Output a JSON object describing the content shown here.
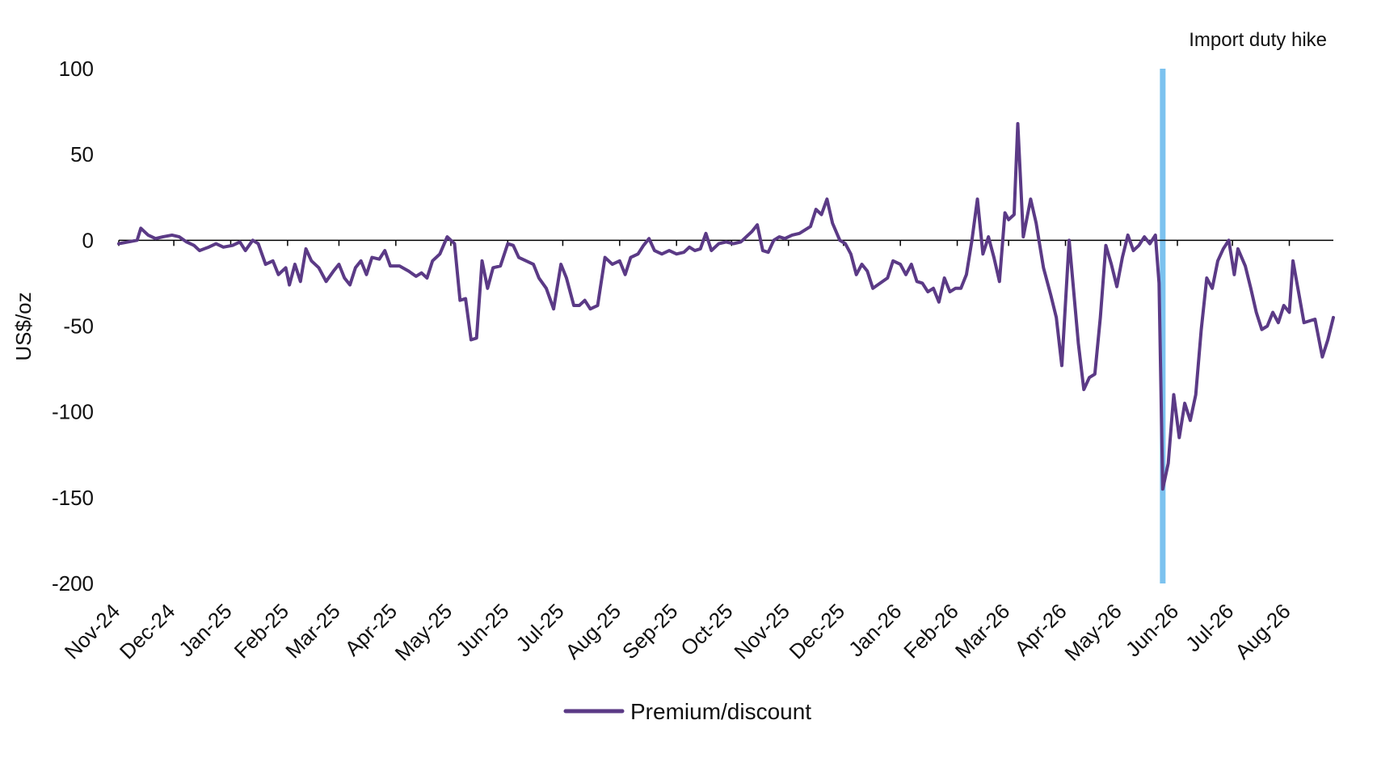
{
  "chart_data": {
    "type": "line",
    "title": "",
    "xlabel": "",
    "ylabel": "US$/oz",
    "ylim": [
      -200,
      100
    ],
    "yticks": [
      100,
      50,
      0,
      -50,
      -100,
      -150,
      -200
    ],
    "xlim": [
      "2024-11-01",
      "2026-08-25"
    ],
    "x_ticks": [
      "2024-11-01",
      "2024-12-01",
      "2025-01-01",
      "2025-02-01",
      "2025-03-01",
      "2025-04-01",
      "2025-05-01",
      "2025-06-01",
      "2025-07-01",
      "2025-08-01",
      "2025-09-01",
      "2025-10-01",
      "2025-11-01",
      "2025-12-01",
      "2026-01-01",
      "2026-02-01",
      "2026-03-01",
      "2026-04-01",
      "2026-05-01",
      "2026-06-01",
      "2026-07-01",
      "2026-08-01"
    ],
    "x_tick_labels": [
      "Nov-24",
      "Dec-24",
      "Jan-25",
      "Feb-25",
      "Mar-25",
      "Apr-25",
      "May-25",
      "Jun-25",
      "Jul-25",
      "Aug-25",
      "Sep-25",
      "Oct-25",
      "Nov-25",
      "Dec-25",
      "Jan-26",
      "Feb-26",
      "Mar-26",
      "Apr-26",
      "May-26",
      "Jun-26",
      "Jul-26",
      "Aug-26"
    ],
    "grid": false,
    "legend_position": "bottom-center",
    "colors": {
      "series": "#5b3a86",
      "annotation": "#7cc2ef",
      "zero_line": "#000000",
      "text": "#111111"
    },
    "annotations": [
      {
        "type": "vertical_line",
        "x": "2026-05-24",
        "label": "Import duty hike"
      }
    ],
    "series": [
      {
        "name": "Premium/discount",
        "points": [
          {
            "x": "2024-11-01",
            "y": -2
          },
          {
            "x": "2024-11-06",
            "y": -1
          },
          {
            "x": "2024-11-11",
            "y": 0
          },
          {
            "x": "2024-11-13",
            "y": 7
          },
          {
            "x": "2024-11-17",
            "y": 3
          },
          {
            "x": "2024-11-21",
            "y": 1
          },
          {
            "x": "2024-11-25",
            "y": 2
          },
          {
            "x": "2024-11-30",
            "y": 3
          },
          {
            "x": "2024-12-04",
            "y": 2
          },
          {
            "x": "2024-12-08",
            "y": -1
          },
          {
            "x": "2024-12-12",
            "y": -3
          },
          {
            "x": "2024-12-15",
            "y": -6
          },
          {
            "x": "2024-12-20",
            "y": -4
          },
          {
            "x": "2024-12-24",
            "y": -2
          },
          {
            "x": "2024-12-28",
            "y": -4
          },
          {
            "x": "2025-01-02",
            "y": -3
          },
          {
            "x": "2025-01-06",
            "y": -1
          },
          {
            "x": "2025-01-09",
            "y": -6
          },
          {
            "x": "2025-01-13",
            "y": 0
          },
          {
            "x": "2025-01-16",
            "y": -2
          },
          {
            "x": "2025-01-20",
            "y": -14
          },
          {
            "x": "2025-01-24",
            "y": -12
          },
          {
            "x": "2025-01-27",
            "y": -20
          },
          {
            "x": "2025-01-31",
            "y": -16
          },
          {
            "x": "2025-02-02",
            "y": -26
          },
          {
            "x": "2025-02-05",
            "y": -14
          },
          {
            "x": "2025-02-08",
            "y": -24
          },
          {
            "x": "2025-02-11",
            "y": -5
          },
          {
            "x": "2025-02-14",
            "y": -12
          },
          {
            "x": "2025-02-18",
            "y": -16
          },
          {
            "x": "2025-02-22",
            "y": -24
          },
          {
            "x": "2025-02-26",
            "y": -18
          },
          {
            "x": "2025-03-01",
            "y": -14
          },
          {
            "x": "2025-03-04",
            "y": -22
          },
          {
            "x": "2025-03-07",
            "y": -26
          },
          {
            "x": "2025-03-10",
            "y": -16
          },
          {
            "x": "2025-03-13",
            "y": -12
          },
          {
            "x": "2025-03-16",
            "y": -20
          },
          {
            "x": "2025-03-19",
            "y": -10
          },
          {
            "x": "2025-03-23",
            "y": -11
          },
          {
            "x": "2025-03-26",
            "y": -6
          },
          {
            "x": "2025-03-29",
            "y": -15
          },
          {
            "x": "2025-04-03",
            "y": -15
          },
          {
            "x": "2025-04-08",
            "y": -18
          },
          {
            "x": "2025-04-12",
            "y": -21
          },
          {
            "x": "2025-04-15",
            "y": -19
          },
          {
            "x": "2025-04-18",
            "y": -22
          },
          {
            "x": "2025-04-21",
            "y": -12
          },
          {
            "x": "2025-04-25",
            "y": -8
          },
          {
            "x": "2025-04-29",
            "y": 2
          },
          {
            "x": "2025-05-03",
            "y": -2
          },
          {
            "x": "2025-05-06",
            "y": -35
          },
          {
            "x": "2025-05-09",
            "y": -34
          },
          {
            "x": "2025-05-12",
            "y": -58
          },
          {
            "x": "2025-05-15",
            "y": -57
          },
          {
            "x": "2025-05-18",
            "y": -12
          },
          {
            "x": "2025-05-21",
            "y": -28
          },
          {
            "x": "2025-05-24",
            "y": -16
          },
          {
            "x": "2025-05-28",
            "y": -15
          },
          {
            "x": "2025-06-01",
            "y": -2
          },
          {
            "x": "2025-06-04",
            "y": -3
          },
          {
            "x": "2025-06-07",
            "y": -10
          },
          {
            "x": "2025-06-11",
            "y": -12
          },
          {
            "x": "2025-06-15",
            "y": -14
          },
          {
            "x": "2025-06-18",
            "y": -22
          },
          {
            "x": "2025-06-22",
            "y": -28
          },
          {
            "x": "2025-06-26",
            "y": -40
          },
          {
            "x": "2025-06-30",
            "y": -14
          },
          {
            "x": "2025-07-03",
            "y": -22
          },
          {
            "x": "2025-07-07",
            "y": -38
          },
          {
            "x": "2025-07-10",
            "y": -38
          },
          {
            "x": "2025-07-13",
            "y": -35
          },
          {
            "x": "2025-07-16",
            "y": -40
          },
          {
            "x": "2025-07-20",
            "y": -38
          },
          {
            "x": "2025-07-24",
            "y": -10
          },
          {
            "x": "2025-07-28",
            "y": -14
          },
          {
            "x": "2025-08-01",
            "y": -12
          },
          {
            "x": "2025-08-04",
            "y": -20
          },
          {
            "x": "2025-08-07",
            "y": -10
          },
          {
            "x": "2025-08-11",
            "y": -8
          },
          {
            "x": "2025-08-14",
            "y": -3
          },
          {
            "x": "2025-08-17",
            "y": 1
          },
          {
            "x": "2025-08-20",
            "y": -6
          },
          {
            "x": "2025-08-24",
            "y": -8
          },
          {
            "x": "2025-08-28",
            "y": -6
          },
          {
            "x": "2025-09-01",
            "y": -8
          },
          {
            "x": "2025-09-05",
            "y": -7
          },
          {
            "x": "2025-09-08",
            "y": -4
          },
          {
            "x": "2025-09-11",
            "y": -6
          },
          {
            "x": "2025-09-14",
            "y": -5
          },
          {
            "x": "2025-09-17",
            "y": 4
          },
          {
            "x": "2025-09-20",
            "y": -6
          },
          {
            "x": "2025-09-24",
            "y": -2
          },
          {
            "x": "2025-09-28",
            "y": -1
          },
          {
            "x": "2025-10-02",
            "y": -2
          },
          {
            "x": "2025-10-06",
            "y": -1
          },
          {
            "x": "2025-10-09",
            "y": 2
          },
          {
            "x": "2025-10-12",
            "y": 5
          },
          {
            "x": "2025-10-15",
            "y": 9
          },
          {
            "x": "2025-10-18",
            "y": -6
          },
          {
            "x": "2025-10-21",
            "y": -7
          },
          {
            "x": "2025-10-24",
            "y": 0
          },
          {
            "x": "2025-10-27",
            "y": 2
          },
          {
            "x": "2025-10-30",
            "y": 1
          },
          {
            "x": "2025-11-03",
            "y": 3
          },
          {
            "x": "2025-11-07",
            "y": 4
          },
          {
            "x": "2025-11-10",
            "y": 6
          },
          {
            "x": "2025-11-13",
            "y": 8
          },
          {
            "x": "2025-11-16",
            "y": 18
          },
          {
            "x": "2025-11-19",
            "y": 15
          },
          {
            "x": "2025-11-22",
            "y": 24
          },
          {
            "x": "2025-11-25",
            "y": 10
          },
          {
            "x": "2025-11-29",
            "y": 0
          },
          {
            "x": "2025-12-02",
            "y": -2
          },
          {
            "x": "2025-12-05",
            "y": -8
          },
          {
            "x": "2025-12-08",
            "y": -20
          },
          {
            "x": "2025-12-11",
            "y": -14
          },
          {
            "x": "2025-12-14",
            "y": -18
          },
          {
            "x": "2025-12-17",
            "y": -28
          },
          {
            "x": "2025-12-21",
            "y": -25
          },
          {
            "x": "2025-12-25",
            "y": -22
          },
          {
            "x": "2025-12-28",
            "y": -12
          },
          {
            "x": "2026-01-01",
            "y": -14
          },
          {
            "x": "2026-01-04",
            "y": -20
          },
          {
            "x": "2026-01-07",
            "y": -14
          },
          {
            "x": "2026-01-10",
            "y": -24
          },
          {
            "x": "2026-01-13",
            "y": -25
          },
          {
            "x": "2026-01-16",
            "y": -30
          },
          {
            "x": "2026-01-19",
            "y": -28
          },
          {
            "x": "2026-01-22",
            "y": -36
          },
          {
            "x": "2026-01-25",
            "y": -22
          },
          {
            "x": "2026-01-28",
            "y": -30
          },
          {
            "x": "2026-01-31",
            "y": -28
          },
          {
            "x": "2026-02-03",
            "y": -28
          },
          {
            "x": "2026-02-06",
            "y": -20
          },
          {
            "x": "2026-02-09",
            "y": 0
          },
          {
            "x": "2026-02-12",
            "y": 24
          },
          {
            "x": "2026-02-15",
            "y": -8
          },
          {
            "x": "2026-02-18",
            "y": 2
          },
          {
            "x": "2026-02-21",
            "y": -10
          },
          {
            "x": "2026-02-24",
            "y": -24
          },
          {
            "x": "2026-02-27",
            "y": 16
          },
          {
            "x": "2026-03-01",
            "y": 12
          },
          {
            "x": "2026-03-04",
            "y": 15
          },
          {
            "x": "2026-03-06",
            "y": 68
          },
          {
            "x": "2026-03-09",
            "y": 2
          },
          {
            "x": "2026-03-13",
            "y": 24
          },
          {
            "x": "2026-03-16",
            "y": 10
          },
          {
            "x": "2026-03-20",
            "y": -16
          },
          {
            "x": "2026-03-24",
            "y": -32
          },
          {
            "x": "2026-03-27",
            "y": -45
          },
          {
            "x": "2026-03-30",
            "y": -73
          },
          {
            "x": "2026-04-03",
            "y": 0
          },
          {
            "x": "2026-04-08",
            "y": -60
          },
          {
            "x": "2026-04-11",
            "y": -87
          },
          {
            "x": "2026-04-14",
            "y": -80
          },
          {
            "x": "2026-04-17",
            "y": -78
          },
          {
            "x": "2026-04-20",
            "y": -45
          },
          {
            "x": "2026-04-23",
            "y": -3
          },
          {
            "x": "2026-04-26",
            "y": -14
          },
          {
            "x": "2026-04-29",
            "y": -27
          },
          {
            "x": "2026-05-02",
            "y": -10
          },
          {
            "x": "2026-05-05",
            "y": 3
          },
          {
            "x": "2026-05-08",
            "y": -6
          },
          {
            "x": "2026-05-11",
            "y": -3
          },
          {
            "x": "2026-05-14",
            "y": 2
          },
          {
            "x": "2026-05-17",
            "y": -2
          },
          {
            "x": "2026-05-20",
            "y": 3
          },
          {
            "x": "2026-05-22",
            "y": -25
          },
          {
            "x": "2026-05-24",
            "y": -145
          },
          {
            "x": "2026-05-27",
            "y": -130
          },
          {
            "x": "2026-05-30",
            "y": -90
          },
          {
            "x": "2026-06-02",
            "y": -115
          },
          {
            "x": "2026-06-05",
            "y": -95
          },
          {
            "x": "2026-06-08",
            "y": -105
          },
          {
            "x": "2026-06-11",
            "y": -90
          },
          {
            "x": "2026-06-14",
            "y": -52
          },
          {
            "x": "2026-06-17",
            "y": -22
          },
          {
            "x": "2026-06-20",
            "y": -28
          },
          {
            "x": "2026-06-23",
            "y": -12
          },
          {
            "x": "2026-06-26",
            "y": -5
          },
          {
            "x": "2026-06-29",
            "y": 0
          },
          {
            "x": "2026-07-02",
            "y": -20
          },
          {
            "x": "2026-07-04",
            "y": -5
          },
          {
            "x": "2026-07-08",
            "y": -15
          },
          {
            "x": "2026-07-11",
            "y": -28
          },
          {
            "x": "2026-07-14",
            "y": -42
          },
          {
            "x": "2026-07-17",
            "y": -52
          },
          {
            "x": "2026-07-20",
            "y": -50
          },
          {
            "x": "2026-07-23",
            "y": -42
          },
          {
            "x": "2026-07-26",
            "y": -48
          },
          {
            "x": "2026-07-29",
            "y": -38
          },
          {
            "x": "2026-08-01",
            "y": -42
          },
          {
            "x": "2026-08-03",
            "y": -12
          },
          {
            "x": "2026-08-06",
            "y": -30
          },
          {
            "x": "2026-08-09",
            "y": -48
          },
          {
            "x": "2026-08-12",
            "y": -47
          },
          {
            "x": "2026-08-15",
            "y": -46
          },
          {
            "x": "2026-08-19",
            "y": -68
          },
          {
            "x": "2026-08-22",
            "y": -58
          },
          {
            "x": "2026-08-25",
            "y": -45
          }
        ]
      }
    ]
  }
}
